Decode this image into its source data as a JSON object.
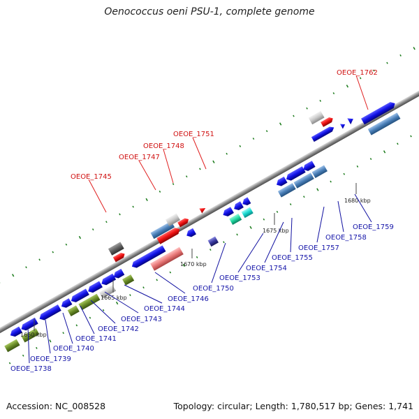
{
  "title": "Oenococcus oeni PSU-1, complete genome",
  "footer": {
    "accession": "Accession: NC_008528",
    "topology": "Topology: circular; Length: 1,780,517 bp; Genes: 1,741"
  },
  "scale_labels": [
    "1660 kbp",
    "1665 kbp",
    "1670 kbp",
    "1675 kbp",
    "1680 kbp"
  ],
  "colors": {
    "cds": "#1010e0",
    "rna": "#ee1010",
    "green_feature": "#6a8c28",
    "steel_feature": "#4a7fb8",
    "cyan_feature": "#18d8d0",
    "teal_feature": "#20c8a0",
    "gray_feature": "#c0c0c0",
    "pink_feature": "#e87878",
    "red_label": "#d01010",
    "blue_label": "#1414a8",
    "tick": "#1a7a1a"
  },
  "labels_top": [
    "OEOE_1745",
    "OEOE_1747",
    "OEOE_1748",
    "OEOE_1751",
    "OEOE_1762"
  ],
  "labels_bottom": [
    "OEOE_1738",
    "OEOE_1739",
    "OEOE_1740",
    "OEOE_1741",
    "OEOE_1742",
    "OEOE_1743",
    "OEOE_1744",
    "OEOE_1746",
    "OEOE_1750",
    "OEOE_1753",
    "OEOE_1754",
    "OEOE_1755",
    "OEOE_1757",
    "OEOE_1758",
    "OEOE_1759"
  ]
}
